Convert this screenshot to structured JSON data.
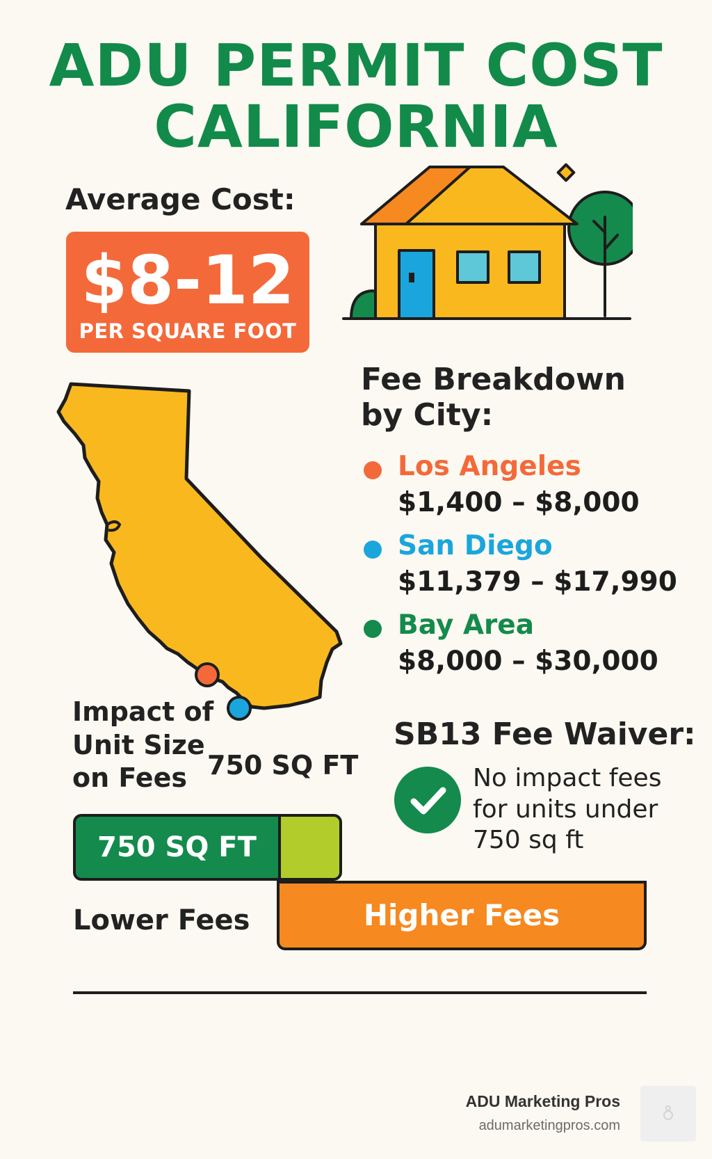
{
  "header": {
    "title_line1": "ADU PERMIT COST",
    "title_line2": "CALIFORNIA"
  },
  "average_cost": {
    "label": "Average Cost:",
    "value": "$8-12",
    "unit": "PER SQUARE FOOT"
  },
  "fee_breakdown": {
    "heading_line1": "Fee Breakdown",
    "heading_line2": "by City:",
    "cities": [
      {
        "name": "Los Angeles",
        "range": "$1,400 – $8,000",
        "color": "#f4693a"
      },
      {
        "name": "San Diego",
        "range": "$11,379 – $17,990",
        "color": "#1aa6dc"
      },
      {
        "name": "Bay Area",
        "range": "$8,000 – $30,000",
        "color": "#148a4c"
      }
    ]
  },
  "map": {
    "fill_color": "#f9b81e",
    "marker_colors": [
      "#f4693a",
      "#1aa6dc"
    ]
  },
  "unit_size": {
    "label_line1": "Impact of",
    "label_line2": "Unit Size",
    "label_line3": "on Fees",
    "map_sqft_label": "750 SQ FT",
    "bar_label": "750 SQ FT",
    "lower_label": "Lower Fees",
    "higher_label": "Higher Fees"
  },
  "waiver": {
    "title": "SB13 Fee Waiver:",
    "text_line1": "No impact fees",
    "text_line2": "for units under",
    "text_line3": "750 sq ft",
    "icon": "check-icon"
  },
  "brand": {
    "name": "ADU Marketing Pros",
    "url": "adumarketingpros.com"
  }
}
